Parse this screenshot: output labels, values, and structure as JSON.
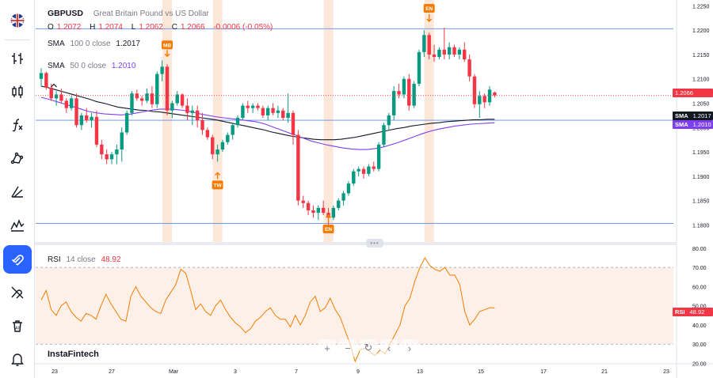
{
  "header": {
    "symbol": "GBPUSD",
    "description": "Great Britain Pound vs US Dollar",
    "o_label": "O",
    "o_value": "1.2072",
    "h_label": "H",
    "h_value": "1.2074",
    "l_label": "L",
    "l_value": "1.2062",
    "c_label": "C",
    "c_value": "1.2066",
    "change": "-0.0006 (-0.05%)"
  },
  "indicators": {
    "sma100": {
      "name": "SMA",
      "params": "100 0 close",
      "value": "1.2017",
      "tag_name": "SMA",
      "tag_value": "1.2017",
      "color": "#131722"
    },
    "sma50": {
      "name": "SMA",
      "params": "50 0 close",
      "value": "1.2010",
      "tag_name": "SMA",
      "tag_value": "1.2010",
      "color": "#7e3ff2"
    },
    "rsi": {
      "name": "RSI",
      "params": "14 close",
      "value": "48.92",
      "tag_name": "RSI",
      "tag_value": "48.92",
      "color": "#f57c00"
    }
  },
  "current_price": {
    "value": "1.2066",
    "color": "#f23645"
  },
  "brand": "InstaFintech",
  "colors": {
    "up": "#089981",
    "down": "#f23645",
    "event_band": "#fbe3d2",
    "event_tag": "#f57c00",
    "hline": "#5b8def",
    "rsi_band": "#fdf0e8"
  },
  "toolbar": {
    "items": [
      {
        "name": "flag-icon"
      },
      {
        "name": "candle-type-icon"
      },
      {
        "name": "candles-icon"
      },
      {
        "name": "function-icon"
      },
      {
        "name": "drawing-icon"
      },
      {
        "name": "lines-icon"
      },
      {
        "name": "patterns-icon"
      },
      {
        "name": "magnet-icon"
      },
      {
        "name": "hide-drawings-icon"
      },
      {
        "name": "delete-icon"
      },
      {
        "name": "alert-icon"
      }
    ]
  },
  "nav": {
    "zoom_in": "+",
    "zoom_out": "−",
    "reset": "↻",
    "left": "‹",
    "right": "›"
  },
  "chart_data": [
    {
      "type": "candlestick",
      "title": "GBPUSD",
      "y_axis_ticks": [
        "1.2250",
        "1.2200",
        "1.2150",
        "1.2100",
        "1.2050",
        "1.2000",
        "1.1950",
        "1.1900",
        "1.1850",
        "1.1800"
      ],
      "ylim": [
        1.1765,
        1.2262
      ],
      "x_axis_ticks": [
        "23",
        "27",
        "Mar",
        "3",
        "7",
        "9",
        "13",
        "15",
        "17",
        "21",
        "23"
      ],
      "ohlc": [
        [
          1.21,
          1.2122,
          1.2085,
          1.2112
        ],
        [
          1.2112,
          1.2115,
          1.2078,
          1.2082
        ],
        [
          1.2082,
          1.209,
          1.2055,
          1.206
        ],
        [
          1.206,
          1.2075,
          1.2045,
          1.2068
        ],
        [
          1.2068,
          1.208,
          1.205,
          1.2055
        ],
        [
          1.2055,
          1.206,
          1.203,
          1.204
        ],
        [
          1.204,
          1.2065,
          1.2035,
          1.206
        ],
        [
          1.206,
          1.207,
          1.2,
          1.2005
        ],
        [
          1.2005,
          1.203,
          1.1995,
          1.2025
        ],
        [
          1.2025,
          1.204,
          1.201,
          1.2015
        ],
        [
          1.2015,
          1.203,
          1.2,
          1.2022
        ],
        [
          1.2022,
          1.2035,
          1.196,
          1.1965
        ],
        [
          1.1965,
          1.1975,
          1.1935,
          1.1945
        ],
        [
          1.1945,
          1.1955,
          1.1925,
          1.1935
        ],
        [
          1.1935,
          1.195,
          1.1925,
          1.1945
        ],
        [
          1.1945,
          1.1965,
          1.1925,
          1.1955
        ],
        [
          1.1955,
          1.2,
          1.193,
          1.199
        ],
        [
          1.199,
          1.2035,
          1.1985,
          1.203
        ],
        [
          1.203,
          1.2075,
          1.2025,
          1.207
        ],
        [
          1.207,
          1.2078,
          1.2055,
          1.206
        ],
        [
          1.206,
          1.2065,
          1.2045,
          1.2055
        ],
        [
          1.2055,
          1.208,
          1.205,
          1.207
        ],
        [
          1.207,
          1.2085,
          1.204,
          1.2048
        ],
        [
          1.2048,
          1.2115,
          1.204,
          1.211
        ],
        [
          1.211,
          1.2138,
          1.2095,
          1.2125
        ],
        [
          1.2125,
          1.213,
          1.2025,
          1.2035
        ],
        [
          1.2035,
          1.2055,
          1.202,
          1.205
        ],
        [
          1.205,
          1.2075,
          1.2045,
          1.2068
        ],
        [
          1.2068,
          1.207,
          1.204,
          1.2045
        ],
        [
          1.2045,
          1.206,
          1.2015,
          1.203
        ],
        [
          1.203,
          1.2045,
          1.2005,
          1.2035
        ],
        [
          1.2035,
          1.2045,
          1.2,
          1.2015
        ],
        [
          1.2015,
          1.203,
          1.1985,
          1.1995
        ],
        [
          1.1995,
          1.2,
          1.1975,
          1.198
        ],
        [
          1.198,
          1.1985,
          1.1935,
          1.1945
        ],
        [
          1.1945,
          1.1965,
          1.193,
          1.1955
        ],
        [
          1.1955,
          1.1975,
          1.195,
          1.197
        ],
        [
          1.197,
          1.199,
          1.1965,
          1.1985
        ],
        [
          1.1985,
          1.201,
          1.1975,
          1.2005
        ],
        [
          1.2005,
          1.2025,
          1.2,
          1.202
        ],
        [
          1.202,
          1.205,
          1.2015,
          1.2045
        ],
        [
          1.2045,
          1.2055,
          1.203,
          1.204
        ],
        [
          1.204,
          1.205,
          1.203,
          1.2045
        ],
        [
          1.2045,
          1.205,
          1.2035,
          1.204
        ],
        [
          1.204,
          1.2045,
          1.202,
          1.2025
        ],
        [
          1.2025,
          1.2045,
          1.2015,
          1.204
        ],
        [
          1.204,
          1.205,
          1.2025,
          1.203
        ],
        [
          1.203,
          1.2045,
          1.202,
          1.2035
        ],
        [
          1.2035,
          1.204,
          1.2015,
          1.202
        ],
        [
          1.202,
          1.207,
          1.201,
          1.203
        ],
        [
          1.203,
          1.2035,
          1.1965,
          1.1985
        ],
        [
          1.1985,
          1.1995,
          1.184,
          1.185
        ],
        [
          1.185,
          1.186,
          1.1835,
          1.1845
        ],
        [
          1.1845,
          1.185,
          1.182,
          1.183
        ],
        [
          1.183,
          1.184,
          1.1815,
          1.1825
        ],
        [
          1.1825,
          1.184,
          1.181,
          1.1835
        ],
        [
          1.1835,
          1.185,
          1.182,
          1.1825
        ],
        [
          1.1825,
          1.1835,
          1.18,
          1.1815
        ],
        [
          1.1815,
          1.184,
          1.181,
          1.1835
        ],
        [
          1.1835,
          1.1855,
          1.183,
          1.185
        ],
        [
          1.185,
          1.187,
          1.184,
          1.1865
        ],
        [
          1.1865,
          1.189,
          1.186,
          1.1885
        ],
        [
          1.1885,
          1.1915,
          1.188,
          1.191
        ],
        [
          1.191,
          1.192,
          1.19,
          1.1915
        ],
        [
          1.1915,
          1.192,
          1.1895,
          1.1905
        ],
        [
          1.1905,
          1.1925,
          1.19,
          1.192
        ],
        [
          1.192,
          1.193,
          1.191,
          1.1915
        ],
        [
          1.1915,
          1.197,
          1.191,
          1.1965
        ],
        [
          1.1965,
          1.201,
          1.196,
          1.2005
        ],
        [
          1.2005,
          1.203,
          1.1995,
          1.2025
        ],
        [
          1.2025,
          1.2085,
          1.2015,
          1.2075
        ],
        [
          1.2075,
          1.209,
          1.206,
          1.2068
        ],
        [
          1.2068,
          1.2105,
          1.206,
          1.21
        ],
        [
          1.21,
          1.211,
          1.2035,
          1.2045
        ],
        [
          1.2045,
          1.2095,
          1.204,
          1.209
        ],
        [
          1.209,
          1.216,
          1.2085,
          1.2155
        ],
        [
          1.2155,
          1.22,
          1.2145,
          1.219
        ],
        [
          1.219,
          1.2195,
          1.214,
          1.215
        ],
        [
          1.215,
          1.217,
          1.2135,
          1.2145
        ],
        [
          1.2145,
          1.2165,
          1.214,
          1.216
        ],
        [
          1.216,
          1.2205,
          1.214,
          1.215
        ],
        [
          1.215,
          1.2175,
          1.214,
          1.2165
        ],
        [
          1.2165,
          1.217,
          1.2145,
          1.215
        ],
        [
          1.215,
          1.2165,
          1.214,
          1.216
        ],
        [
          1.216,
          1.2175,
          1.2135,
          1.214
        ],
        [
          1.214,
          1.215,
          1.2095,
          1.2105
        ],
        [
          1.2105,
          1.211,
          1.204,
          1.2048
        ],
        [
          1.2048,
          1.2075,
          1.202,
          1.2065
        ],
        [
          1.2065,
          1.207,
          1.204,
          1.2052
        ],
        [
          1.2052,
          1.2085,
          1.2045,
          1.2078
        ],
        [
          1.2072,
          1.2074,
          1.2062,
          1.2066
        ]
      ],
      "sma100": [
        1.2085,
        1.2082,
        1.2078,
        1.2074,
        1.207,
        1.2066,
        1.2062,
        1.2058,
        1.2053,
        1.205,
        1.2046,
        1.2042,
        1.204,
        1.2038,
        1.2036,
        1.2035,
        1.2033,
        1.2032,
        1.203,
        1.2028,
        1.2026,
        1.2024,
        1.2022,
        1.202,
        1.2018,
        1.2016,
        1.2013,
        1.201,
        1.2007,
        1.2004,
        1.2001,
        1.1998,
        1.1995,
        1.1991,
        1.1988,
        1.1985,
        1.1982,
        1.198,
        1.1978,
        1.1976,
        1.1975,
        1.1975,
        1.1975,
        1.1976,
        1.1978,
        1.198,
        1.1983,
        1.1986,
        1.1989,
        1.1992,
        1.1995,
        1.1998,
        1.2,
        1.2003,
        1.2005,
        1.2007,
        1.2009,
        1.201,
        1.2012,
        1.2013,
        1.2014,
        1.2015,
        1.2016,
        1.2016,
        1.2017,
        1.2017
      ],
      "sma50": [
        1.2062,
        1.2058,
        1.2053,
        1.2048,
        1.2043,
        1.2038,
        1.2033,
        1.203,
        1.2028,
        1.2027,
        1.2026,
        1.2027,
        1.203,
        1.2033,
        1.2036,
        1.2038,
        1.2038,
        1.2037,
        1.2035,
        1.2032,
        1.2028,
        1.2025,
        1.2022,
        1.202,
        1.2018,
        1.2016,
        1.2014,
        1.2012,
        1.2008,
        1.2002,
        1.1996,
        1.199,
        1.1984,
        1.1978,
        1.1972,
        1.1968,
        1.1964,
        1.1961,
        1.1958,
        1.1956,
        1.1955,
        1.1955,
        1.1957,
        1.196,
        1.1965,
        1.197,
        1.1976,
        1.1982,
        1.1988,
        1.1993,
        1.1997,
        1.2,
        1.2003,
        1.2005,
        1.2007,
        1.2008,
        1.2009,
        1.201
      ],
      "horizontal_lines": [
        1.2203,
        1.1803,
        1.2015
      ],
      "events": [
        {
          "label": "MB",
          "index": 25,
          "direction": "down"
        },
        {
          "label": "TW",
          "index": 35,
          "direction": "up"
        },
        {
          "label": "EN",
          "index": 57,
          "direction": "up"
        },
        {
          "label": "EN",
          "index": 77,
          "direction": "down"
        }
      ]
    },
    {
      "type": "line",
      "title": "RSI",
      "y_axis_ticks": [
        "80.00",
        "70.00",
        "60.00",
        "50.00",
        "40.00",
        "30.00",
        "20.00"
      ],
      "ylim": [
        19.8,
        81.6
      ],
      "bands": [
        30,
        70
      ],
      "values": [
        53,
        58,
        48,
        45,
        50,
        52,
        47,
        44,
        42,
        46,
        45,
        43,
        50,
        56,
        51,
        47,
        43,
        42,
        55,
        60,
        55,
        52,
        49,
        47,
        46,
        53,
        57,
        61,
        69,
        67,
        58,
        48,
        51,
        47,
        45,
        50,
        53,
        48,
        44,
        41,
        39,
        36,
        38,
        42,
        44,
        47,
        49,
        45,
        43,
        43,
        39,
        45,
        40,
        45,
        52,
        55,
        47,
        49,
        54,
        48,
        44,
        37,
        30,
        21,
        27,
        28,
        26,
        24,
        27,
        25,
        30,
        35,
        40,
        50,
        54,
        63,
        70,
        75,
        71,
        69,
        68,
        70,
        66,
        66,
        61,
        47,
        40,
        43,
        47,
        48,
        49,
        48.9
      ]
    }
  ]
}
